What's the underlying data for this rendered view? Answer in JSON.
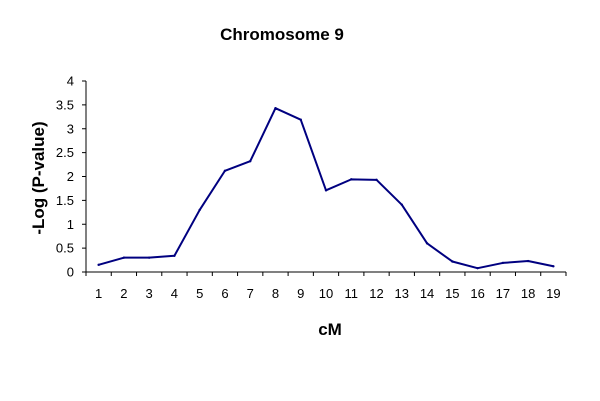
{
  "chart_data": {
    "type": "line",
    "title": "Chromosome 9",
    "xlabel": "cM",
    "ylabel": "-Log (P-value)",
    "categories": [
      "1",
      "2",
      "3",
      "4",
      "5",
      "6",
      "7",
      "8",
      "9",
      "10",
      "11",
      "12",
      "13",
      "14",
      "15",
      "16",
      "17",
      "18",
      "19"
    ],
    "series": [
      {
        "values": [
          0.15,
          0.3,
          0.3,
          0.34,
          1.3,
          2.12,
          2.32,
          3.43,
          3.19,
          1.71,
          1.94,
          1.93,
          1.41,
          0.6,
          0.22,
          0.08,
          0.19,
          0.23,
          0.12
        ],
        "color": "#000080"
      }
    ],
    "ylim": [
      0,
      4
    ],
    "yticks": [
      "0",
      "0.5",
      "1",
      "1.5",
      "2",
      "2.5",
      "3",
      "3.5",
      "4"
    ],
    "grid": false,
    "legend": "none"
  }
}
